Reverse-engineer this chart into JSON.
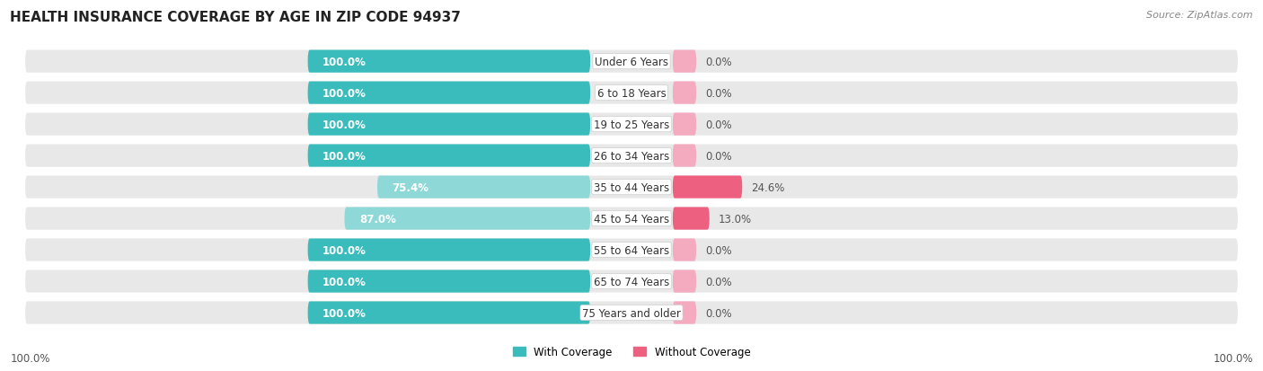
{
  "title": "HEALTH INSURANCE COVERAGE BY AGE IN ZIP CODE 94937",
  "source": "Source: ZipAtlas.com",
  "categories": [
    "Under 6 Years",
    "6 to 18 Years",
    "19 to 25 Years",
    "26 to 34 Years",
    "35 to 44 Years",
    "45 to 54 Years",
    "55 to 64 Years",
    "65 to 74 Years",
    "75 Years and older"
  ],
  "with_coverage": [
    100.0,
    100.0,
    100.0,
    100.0,
    75.4,
    87.0,
    100.0,
    100.0,
    100.0
  ],
  "without_coverage": [
    0.0,
    0.0,
    0.0,
    0.0,
    24.6,
    13.0,
    0.0,
    0.0,
    0.0
  ],
  "color_with_dark": "#3BBCBC",
  "color_with_light": "#8ED8D8",
  "color_without_dark": "#EE6080",
  "color_without_light": "#F4AABF",
  "row_bg_color": "#E8E8E8",
  "background_color": "#FFFFFF",
  "legend_with": "With Coverage",
  "legend_without": "Without Coverage",
  "x_left_label": "100.0%",
  "x_right_label": "100.0%",
  "title_fontsize": 11,
  "source_fontsize": 8,
  "bar_label_fontsize": 8.5,
  "category_label_fontsize": 8.5,
  "axis_label_fontsize": 8.5
}
